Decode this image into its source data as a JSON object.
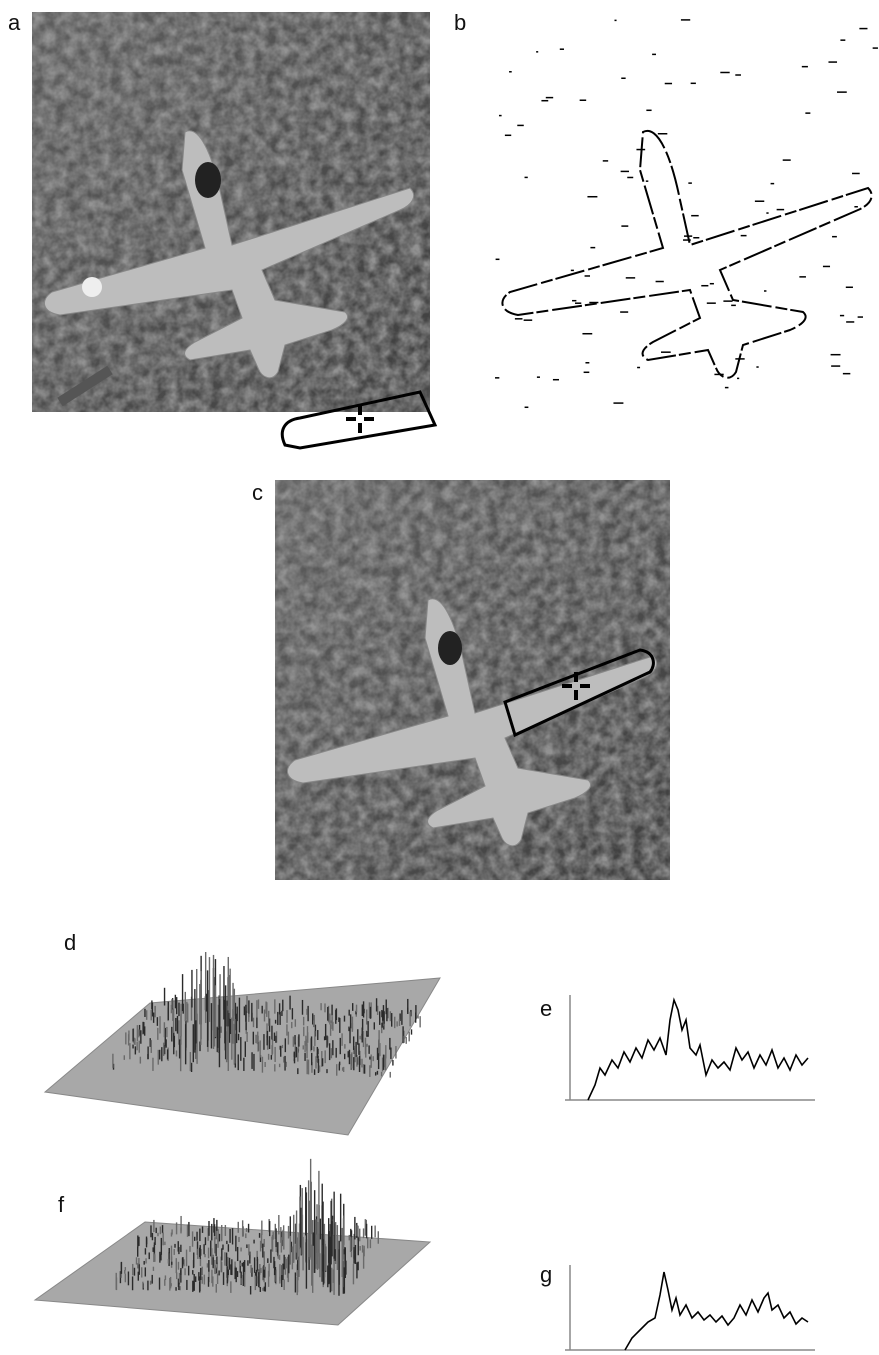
{
  "panels": [
    {
      "label": "a"
    },
    {
      "label": "b"
    },
    {
      "label": "c"
    },
    {
      "label": "d"
    },
    {
      "label": "e"
    },
    {
      "label": "f"
    },
    {
      "label": "g"
    }
  ]
}
